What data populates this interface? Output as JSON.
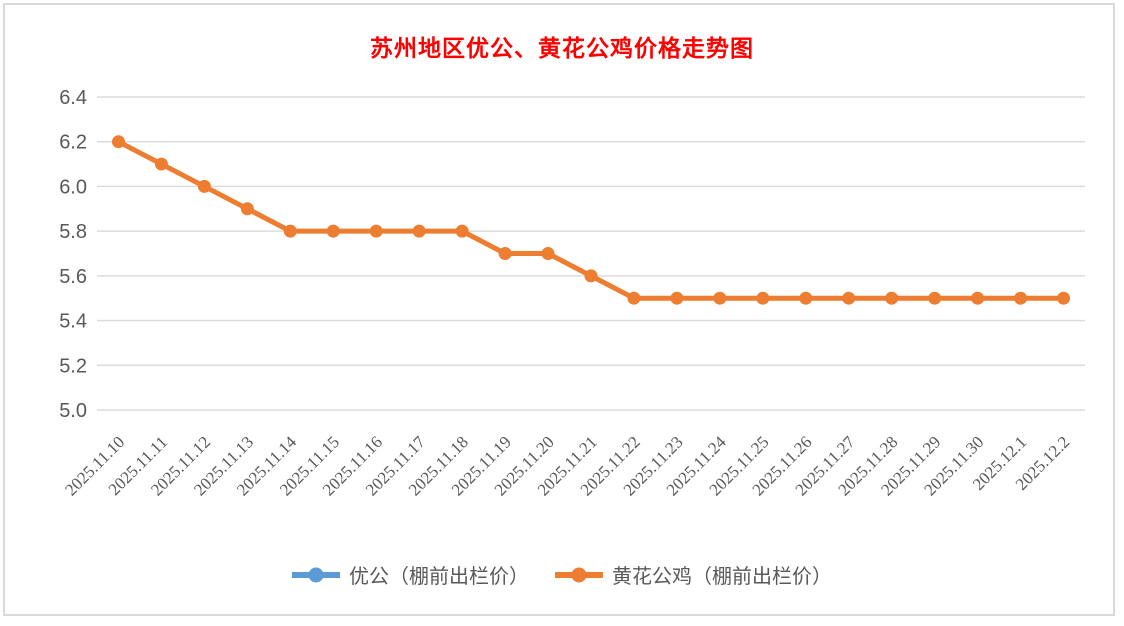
{
  "chart_data": {
    "type": "line",
    "title": "苏州地区优公、黄花公鸡价格走势图",
    "title_color": "#FF0000",
    "categories": [
      "2025.11.10",
      "2025.11.11",
      "2025.11.12",
      "2025.11.13",
      "2025.11.14",
      "2025.11.15",
      "2025.11.16",
      "2025.11.17",
      "2025.11.18",
      "2025.11.19",
      "2025.11.20",
      "2025.11.21",
      "2025.11.22",
      "2025.11.23",
      "2025.11.24",
      "2025.11.25",
      "2025.11.26",
      "2025.11.27",
      "2025.11.28",
      "2025.11.29",
      "2025.11.30",
      "2025.12.1",
      "2025.12.2"
    ],
    "series": [
      {
        "name": "优公（棚前出栏价）",
        "color": "#5B9BD5",
        "values": []
      },
      {
        "name": "黄花公鸡（棚前出栏价）",
        "color": "#ED7D31",
        "values": [
          6.2,
          6.1,
          6.0,
          5.9,
          5.8,
          5.8,
          5.8,
          5.8,
          5.8,
          5.7,
          5.7,
          5.6,
          5.5,
          5.5,
          5.5,
          5.5,
          5.5,
          5.5,
          5.5,
          5.5,
          5.5,
          5.5,
          5.5
        ]
      }
    ],
    "xlabel": "",
    "ylabel": "",
    "ylim": [
      5.0,
      6.4
    ],
    "ytick_step": 0.2,
    "ytick_labels": [
      "5.0",
      "5.2",
      "5.4",
      "5.6",
      "5.8",
      "6.0",
      "6.2",
      "6.4"
    ],
    "grid": true,
    "legend_position": "bottom"
  },
  "colors": {
    "grid": "#DCDCDC",
    "axis_text": "#595959",
    "frame_border": "#D9D9D9",
    "background": "#FFFFFF"
  }
}
